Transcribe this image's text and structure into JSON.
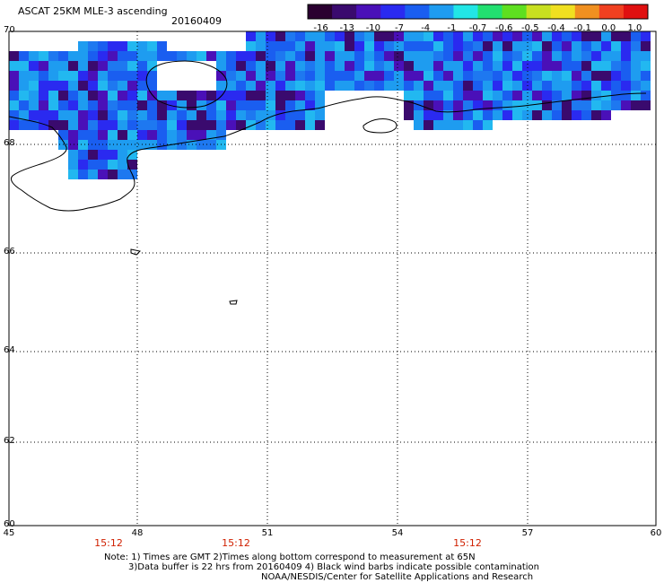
{
  "header": {
    "title": "ASCAT 25KM MLE-3 ascending",
    "date": "20160409"
  },
  "colorbar": {
    "labels": [
      "-16",
      "-13",
      "-10",
      "-7",
      "-4",
      "-1",
      "-0.7",
      "-0.6",
      "-0.5",
      "-0.4",
      "-0.1",
      "0.0",
      "1.0"
    ],
    "colors": [
      "#2a0030",
      "#3a0a6e",
      "#4a10b8",
      "#2a2af0",
      "#1a5ef0",
      "#1e9cf0",
      "#22e6e6",
      "#22e070",
      "#5ee020",
      "#c8e020",
      "#f0e020",
      "#f09020",
      "#f04020",
      "#e01010"
    ]
  },
  "map": {
    "lat_labels": [
      "70",
      "68",
      "66",
      "64",
      "62",
      "60"
    ],
    "lon_labels": [
      "45",
      "48",
      "51",
      "54",
      "57",
      "60"
    ],
    "time_labels": [
      "15:12",
      "15:12",
      "15:12"
    ]
  },
  "notes": {
    "line1": "Note: 1) Times are GMT 2)Times along bottom correspond to measurement at 65N",
    "line2": "3)Data buffer is 22 hrs from 20160409 4) Black wind barbs indicate possible contamination",
    "line3": "NOAA/NESDIS/Center for Satellite Applications and Research"
  }
}
